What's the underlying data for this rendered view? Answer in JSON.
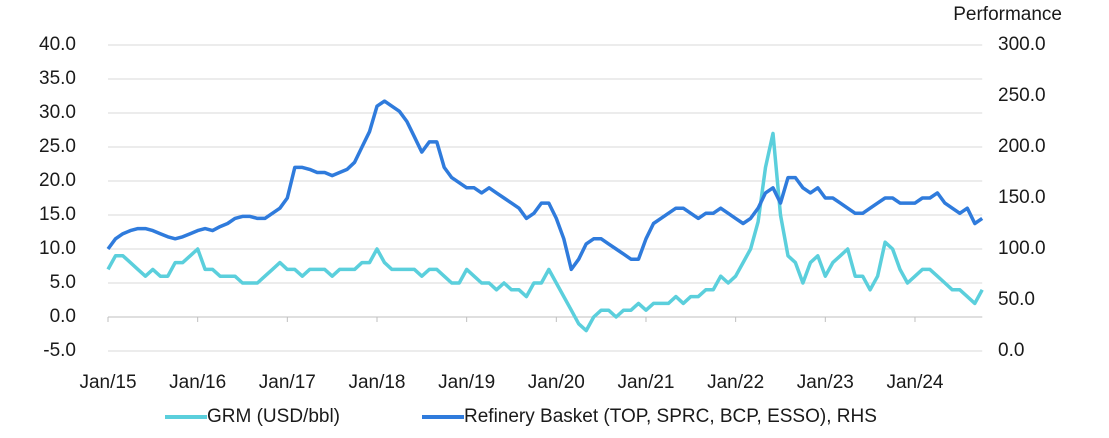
{
  "chart_data": {
    "type": "line",
    "y2label": "Performance",
    "categories": [
      "Jan/15",
      null,
      null,
      null,
      null,
      null,
      null,
      null,
      null,
      null,
      null,
      null,
      "Jan/16",
      null,
      null,
      null,
      null,
      null,
      null,
      null,
      null,
      null,
      null,
      null,
      "Jan/17",
      null,
      null,
      null,
      null,
      null,
      null,
      null,
      null,
      null,
      null,
      null,
      "Jan/18",
      null,
      null,
      null,
      null,
      null,
      null,
      null,
      null,
      null,
      null,
      null,
      "Jan/19",
      null,
      null,
      null,
      null,
      null,
      null,
      null,
      null,
      null,
      null,
      null,
      "Jan/20",
      null,
      null,
      null,
      null,
      null,
      null,
      null,
      null,
      null,
      null,
      null,
      "Jan/21",
      null,
      null,
      null,
      null,
      null,
      null,
      null,
      null,
      null,
      null,
      null,
      "Jan/22",
      null,
      null,
      null,
      null,
      null,
      null,
      null,
      null,
      null,
      null,
      null,
      "Jan/23",
      null,
      null,
      null,
      null,
      null,
      null,
      null,
      null,
      null,
      null,
      null,
      "Jan/24",
      null,
      null,
      null,
      null,
      null,
      null,
      null,
      null,
      null
    ],
    "series": [
      {
        "name": "GRM (USD/bbl)",
        "color": "#5bcfdc",
        "values": [
          7,
          9,
          9,
          8,
          7,
          6,
          7,
          6,
          6,
          8,
          8,
          9,
          10,
          7,
          7,
          6,
          6,
          6,
          5,
          5,
          5,
          6,
          7,
          8,
          7,
          7,
          6,
          7,
          7,
          7,
          6,
          7,
          7,
          7,
          8,
          8,
          10,
          8,
          7,
          7,
          7,
          7,
          6,
          7,
          7,
          6,
          5,
          5,
          7,
          6,
          5,
          5,
          4,
          5,
          4,
          4,
          3,
          5,
          5,
          7,
          5,
          3,
          1,
          -1,
          -2,
          0,
          1,
          1,
          0,
          1,
          1,
          2,
          1,
          2,
          2,
          2,
          3,
          2,
          3,
          3,
          4,
          4,
          6,
          5,
          6,
          8,
          10,
          14,
          22,
          27,
          15,
          9,
          8,
          5,
          8,
          9,
          6,
          8,
          9,
          10,
          6,
          6,
          4,
          6,
          11,
          10,
          7,
          5,
          6,
          7,
          7,
          6,
          5,
          4,
          4,
          3,
          2,
          4
        ]
      },
      {
        "name": "Refinery Basket (TOP, SPRC, BCP, ESSO), RHS",
        "color": "#2f7bdc",
        "axis": "y2",
        "values": [
          100,
          110,
          115,
          118,
          120,
          120,
          118,
          115,
          112,
          110,
          112,
          115,
          118,
          120,
          118,
          122,
          125,
          130,
          132,
          132,
          130,
          130,
          135,
          140,
          150,
          180,
          180,
          178,
          175,
          175,
          172,
          175,
          178,
          185,
          200,
          215,
          240,
          245,
          240,
          235,
          225,
          210,
          195,
          205,
          205,
          180,
          170,
          165,
          160,
          160,
          155,
          160,
          155,
          150,
          145,
          140,
          130,
          135,
          145,
          145,
          130,
          110,
          80,
          90,
          105,
          110,
          110,
          105,
          100,
          95,
          90,
          90,
          110,
          125,
          130,
          135,
          140,
          140,
          135,
          130,
          135,
          135,
          140,
          135,
          130,
          125,
          130,
          140,
          155,
          160,
          145,
          170,
          170,
          160,
          155,
          160,
          150,
          150,
          145,
          140,
          135,
          135,
          140,
          145,
          150,
          150,
          145,
          145,
          145,
          150,
          150,
          155,
          145,
          140,
          135,
          140,
          125,
          130
        ]
      }
    ],
    "ylim": [
      -5,
      40
    ],
    "yticks": [
      {
        "value": -5,
        "label": "-5.0"
      },
      {
        "value": 0,
        "label": "0.0"
      },
      {
        "value": 5,
        "label": "5.0"
      },
      {
        "value": 10,
        "label": "10.0"
      },
      {
        "value": 15,
        "label": "15.0"
      },
      {
        "value": 20,
        "label": "20.0"
      },
      {
        "value": 25,
        "label": "25.0"
      },
      {
        "value": 30,
        "label": "30.0"
      },
      {
        "value": 35,
        "label": "35.0"
      },
      {
        "value": 40,
        "label": "40.0"
      }
    ],
    "y2lim": [
      0,
      300
    ],
    "y2ticks": [
      {
        "value": 0,
        "label": "0.0"
      },
      {
        "value": 50,
        "label": "50.0"
      },
      {
        "value": 100,
        "label": "100.0"
      },
      {
        "value": 150,
        "label": "150.0"
      },
      {
        "value": 200,
        "label": "200.0"
      },
      {
        "value": 250,
        "label": "250.0"
      },
      {
        "value": 300,
        "label": "300.0"
      }
    ],
    "grid": true,
    "legend": "bottom"
  }
}
